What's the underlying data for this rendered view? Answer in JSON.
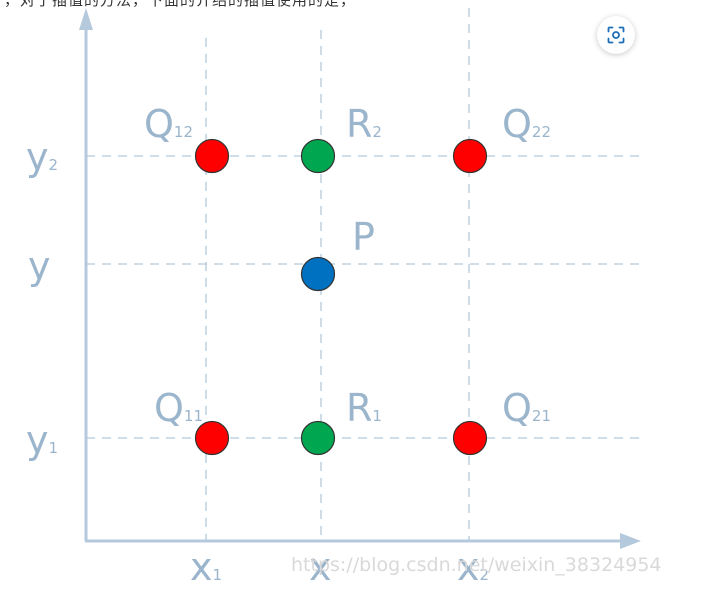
{
  "top_text": "，对于插值的方法，下面的介绍的插值使用的是，",
  "points": {
    "Q12": {
      "letter": "Q",
      "sub": "12",
      "color": "#ff0000"
    },
    "R2": {
      "letter": "R",
      "sub": "2",
      "color": "#00a650"
    },
    "Q22": {
      "letter": "Q",
      "sub": "22",
      "color": "#ff0000"
    },
    "P": {
      "letter": "P",
      "color": "#0070c0"
    },
    "Q11": {
      "letter": "Q",
      "sub": "11",
      "color": "#ff0000"
    },
    "R1": {
      "letter": "R",
      "sub": "1",
      "color": "#00a650"
    },
    "Q21": {
      "letter": "Q",
      "sub": "21",
      "color": "#ff0000"
    }
  },
  "axis_labels": {
    "y2": {
      "letter": "y",
      "sub": "2"
    },
    "y": {
      "letter": "y"
    },
    "y1": {
      "letter": "y",
      "sub": "1"
    },
    "x1": {
      "letter": "x",
      "sub": "1"
    },
    "x": {
      "letter": "x"
    },
    "x2": {
      "letter": "x",
      "sub": "2"
    }
  },
  "watermark": "https://blog.csdn.net/weixin_38324954",
  "colors": {
    "axis": "#b4c9dc",
    "gridline": "#b4c9dc",
    "label": "#9ab5cc"
  },
  "icons": {
    "scan_button": "scan-icon"
  }
}
